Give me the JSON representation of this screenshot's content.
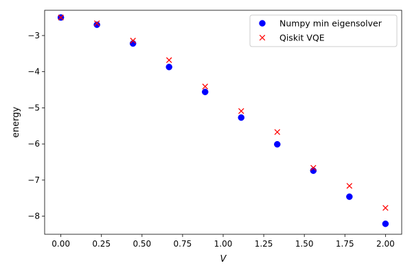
{
  "chart_data": {
    "type": "scatter",
    "xlabel": "V",
    "ylabel": "energy",
    "xlim": [
      -0.1,
      2.1
    ],
    "ylim": [
      -8.5,
      -2.3
    ],
    "xticks": [
      0.0,
      0.25,
      0.5,
      0.75,
      1.0,
      1.25,
      1.5,
      1.75,
      2.0
    ],
    "xtick_labels": [
      "0.00",
      "0.25",
      "0.50",
      "0.75",
      "1.00",
      "1.25",
      "1.50",
      "1.75",
      "2.00"
    ],
    "yticks": [
      -8,
      -7,
      -6,
      -5,
      -4,
      -3
    ],
    "ytick_labels": [
      "−8",
      "−7",
      "−6",
      "−5",
      "−4",
      "−3"
    ],
    "grid": false,
    "legend_position": "top-right",
    "series": [
      {
        "name": "Numpy min eigensolver",
        "marker": "circle",
        "color": "#0000ff",
        "x": [
          0.0,
          0.2222,
          0.4444,
          0.6667,
          0.8889,
          1.1111,
          1.3333,
          1.5556,
          1.7778,
          2.0
        ],
        "y": [
          -2.5,
          -2.7,
          -3.22,
          -3.87,
          -4.56,
          -5.27,
          -6.01,
          -6.74,
          -7.46,
          -8.21
        ]
      },
      {
        "name": "Qiskit VQE",
        "marker": "x",
        "color": "#ff0000",
        "x": [
          0.0,
          0.2222,
          0.4444,
          0.6667,
          0.8889,
          1.1111,
          1.3333,
          1.5556,
          1.7778,
          2.0
        ],
        "y": [
          -2.5,
          -2.66,
          -3.14,
          -3.68,
          -4.41,
          -5.09,
          -5.67,
          -6.66,
          -7.16,
          -7.77
        ]
      }
    ]
  }
}
